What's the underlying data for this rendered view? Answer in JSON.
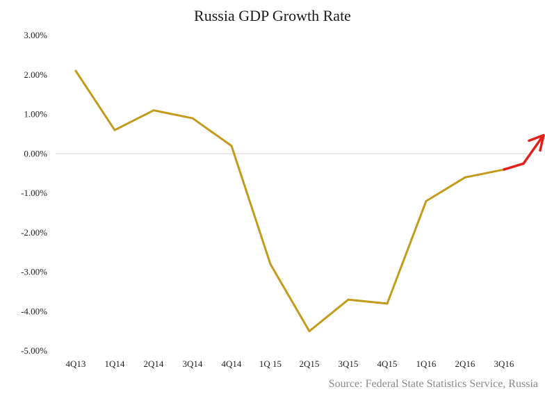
{
  "colors": {
    "series": "#c49a1a",
    "arrow": "#e0201a",
    "zero_line": "#d4d4d4",
    "text": "#222222",
    "source_text": "#8a8a8a"
  },
  "source": "Source: Federal State Statistics Service, Russia",
  "chart_data": {
    "type": "line",
    "title": "Russia GDP Growth Rate",
    "xlabel": "",
    "ylabel": "",
    "categories": [
      "4Q13",
      "1Q14",
      "2Q14",
      "3Q14",
      "4Q14",
      "1Q 15",
      "2Q15",
      "3Q15",
      "4Q15",
      "1Q16",
      "2Q16",
      "3Q16"
    ],
    "series": [
      {
        "values": [
          2.1,
          0.6,
          1.1,
          0.9,
          0.2,
          -2.8,
          -4.5,
          -3.7,
          -3.8,
          -1.2,
          -0.6,
          -0.4
        ]
      }
    ],
    "ylim": [
      -5,
      3
    ],
    "yticks": [
      3,
      2,
      1,
      0,
      -1,
      -2,
      -3,
      -4,
      -5
    ],
    "ytick_labels": [
      "3.00%",
      "2.00%",
      "1.00%",
      "0.00%",
      "-1.00%",
      "-2.00%",
      "-3.00%",
      "-4.00%",
      "-5.00%"
    ],
    "grid": false,
    "legend": "none",
    "annotation": {
      "type": "arrow",
      "description": "red hand-drawn upward trend arrow extending from the last data point",
      "points_y": [
        -0.4,
        -0.25,
        0.4
      ]
    }
  }
}
